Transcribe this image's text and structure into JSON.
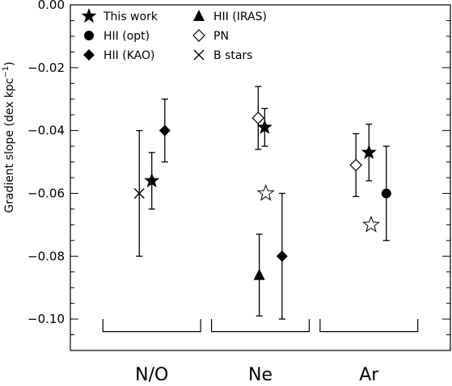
{
  "chart_data": {
    "type": "scatter",
    "ylabel": "Gradient slope (dex kpc",
    "ylabel_sup": "−1",
    "ylabel_end": ")",
    "ylim": [
      -0.11,
      0.0
    ],
    "yticks": [
      0.0,
      -0.02,
      -0.04,
      -0.06,
      -0.08,
      -0.1
    ],
    "ytick_labels": [
      "0.00",
      "−0.02",
      "−0.04",
      "−0.06",
      "−0.08",
      "−0.10"
    ],
    "categories": [
      "N/O",
      "Ne",
      "Ar"
    ],
    "legend": [
      {
        "label": "This work",
        "marker": "filled-star"
      },
      {
        "label": "HII (IRAS)",
        "marker": "filled-triangle"
      },
      {
        "label": "HII (opt)",
        "marker": "filled-circle"
      },
      {
        "label": "PN",
        "marker": "open-diamond"
      },
      {
        "label": "HII (KAO)",
        "marker": "filled-diamond"
      },
      {
        "label": "B stars",
        "marker": "cross"
      }
    ],
    "series": [
      {
        "marker": "cross",
        "points": [
          {
            "x": 0.885,
            "y": -0.06,
            "err_low": 0.02,
            "err_high": 0.02
          }
        ]
      },
      {
        "marker": "filled-star",
        "points": [
          {
            "x": 1.0,
            "y": -0.056,
            "err_low": 0.009,
            "err_high": 0.009
          },
          {
            "x": 2.04,
            "y": -0.039,
            "err_low": 0.006,
            "err_high": 0.006
          },
          {
            "x": 3.0,
            "y": -0.047,
            "err_low": 0.009,
            "err_high": 0.009
          }
        ]
      },
      {
        "marker": "filled-diamond",
        "points": [
          {
            "x": 1.12,
            "y": -0.04,
            "err_low": 0.01,
            "err_high": 0.01
          },
          {
            "x": 2.2,
            "y": -0.08,
            "err_low": 0.02,
            "err_high": 0.02
          }
        ]
      },
      {
        "marker": "open-diamond",
        "points": [
          {
            "x": 1.98,
            "y": -0.036,
            "err_low": 0.01,
            "err_high": 0.01
          },
          {
            "x": 2.88,
            "y": -0.051,
            "err_low": 0.01,
            "err_high": 0.01
          }
        ]
      },
      {
        "marker": "filled-triangle",
        "points": [
          {
            "x": 1.99,
            "y": -0.086,
            "err_low": 0.013,
            "err_high": 0.013
          }
        ]
      },
      {
        "marker": "filled-circle",
        "points": [
          {
            "x": 3.16,
            "y": -0.06,
            "err_low": 0.015,
            "err_high": 0.015
          }
        ]
      },
      {
        "marker": "open-star",
        "points": [
          {
            "x": 2.05,
            "y": -0.06
          },
          {
            "x": 3.02,
            "y": -0.07
          }
        ]
      }
    ],
    "brackets": [
      {
        "category": "N/O",
        "x_start": 0.55,
        "x_end": 1.45,
        "y_top": -0.104,
        "y_bottom": -0.1035
      },
      {
        "category": "Ne",
        "x_start": 1.55,
        "x_end": 2.45,
        "y_top": -0.104,
        "y_bottom": -0.1035
      },
      {
        "category": "Ar",
        "x_start": 2.55,
        "x_end": 3.45,
        "y_top": -0.104,
        "y_bottom": -0.1035
      }
    ],
    "xlim": [
      0.25,
      3.75
    ],
    "grid": false,
    "legend_placement": "top-left"
  }
}
